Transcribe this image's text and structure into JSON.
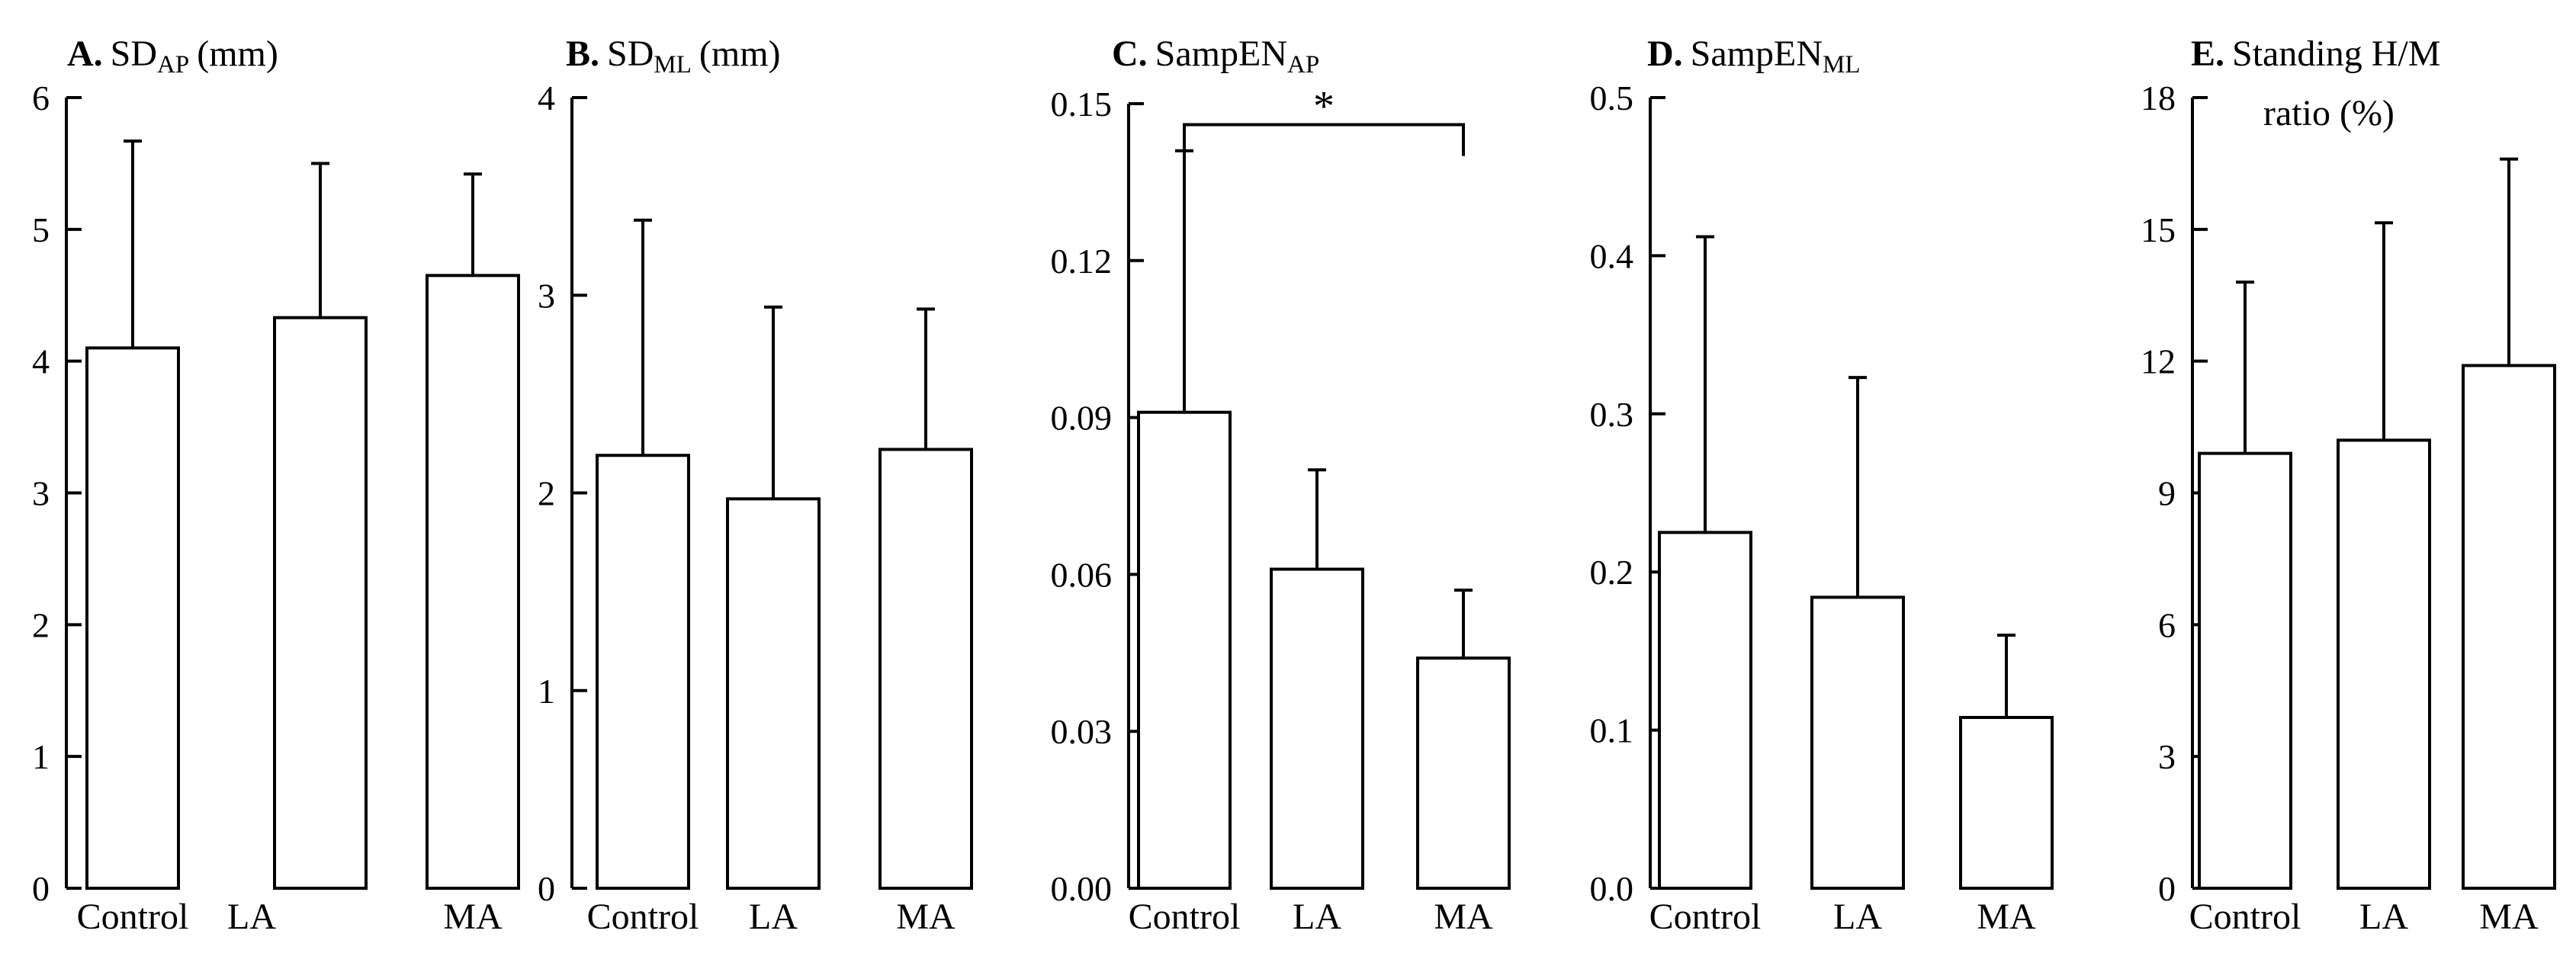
{
  "figure": {
    "background": "#ffffff",
    "bar_fill": "#ffffff",
    "ink": "#000000"
  },
  "chart_data": [
    {
      "id": "A",
      "type": "bar",
      "title": {
        "letter": "A.",
        "main": "SD",
        "sub": "AP",
        "unit": "(mm)"
      },
      "categories": [
        "Control",
        "LA",
        "MA"
      ],
      "values": [
        4.1,
        4.33,
        4.65
      ],
      "errors": [
        1.57,
        1.17,
        0.77
      ],
      "ylim": [
        0,
        6
      ],
      "yticks": [
        "0",
        "1",
        "2",
        "3",
        "4",
        "5",
        "6"
      ],
      "ytick_values": [
        0,
        1,
        2,
        3,
        4,
        5,
        6
      ]
    },
    {
      "id": "B",
      "type": "bar",
      "title": {
        "letter": "B.",
        "main": "SD",
        "sub": "ML",
        "unit": "(mm)"
      },
      "categories": [
        "Control",
        "LA",
        "MA"
      ],
      "values": [
        2.19,
        1.97,
        2.22
      ],
      "errors": [
        1.19,
        0.97,
        0.71
      ],
      "ylim": [
        0,
        4
      ],
      "yticks": [
        "0",
        "1",
        "2",
        "3",
        "4"
      ],
      "ytick_values": [
        0,
        1,
        2,
        3,
        4
      ]
    },
    {
      "id": "C",
      "type": "bar",
      "title": {
        "letter": "C.",
        "main": "SampEN",
        "sub": "AP",
        "unit": ""
      },
      "categories": [
        "Control",
        "LA",
        "MA"
      ],
      "values": [
        0.091,
        0.061,
        0.044
      ],
      "errors": [
        0.05,
        0.019,
        0.013
      ],
      "ylim": [
        0,
        0.15
      ],
      "yticks": [
        "0.00",
        "0.03",
        "0.06",
        "0.09",
        "0.12",
        "0.15"
      ],
      "ytick_values": [
        0,
        0.03,
        0.06,
        0.09,
        0.12,
        0.15
      ],
      "annotation": {
        "label": "*",
        "from": "Control",
        "to": "MA",
        "level": 0.146
      }
    },
    {
      "id": "D",
      "type": "bar",
      "title": {
        "letter": "D.",
        "main": "SampEN",
        "sub": "ML",
        "unit": ""
      },
      "categories": [
        "Control",
        "LA",
        "MA"
      ],
      "values": [
        0.225,
        0.184,
        0.108
      ],
      "errors": [
        0.187,
        0.139,
        0.052
      ],
      "ylim": [
        0,
        0.5
      ],
      "yticks": [
        "0.0",
        "0.1",
        "0.2",
        "0.3",
        "0.4",
        "0.5"
      ],
      "ytick_values": [
        0,
        0.1,
        0.2,
        0.3,
        0.4,
        0.5
      ]
    },
    {
      "id": "E",
      "type": "bar",
      "title": {
        "letter": "E.",
        "main": "Standing  H/M",
        "sub": "",
        "unit": "",
        "line2": "ratio (%)"
      },
      "categories": [
        "Control",
        "LA",
        "MA"
      ],
      "values": [
        9.9,
        10.2,
        11.9
      ],
      "errors": [
        3.9,
        4.95,
        4.7
      ],
      "ylim": [
        0,
        18
      ],
      "yticks": [
        "0",
        "3",
        "6",
        "9",
        "12",
        "15",
        "18"
      ],
      "ytick_values": [
        0,
        3,
        6,
        9,
        12,
        15,
        18
      ]
    }
  ]
}
